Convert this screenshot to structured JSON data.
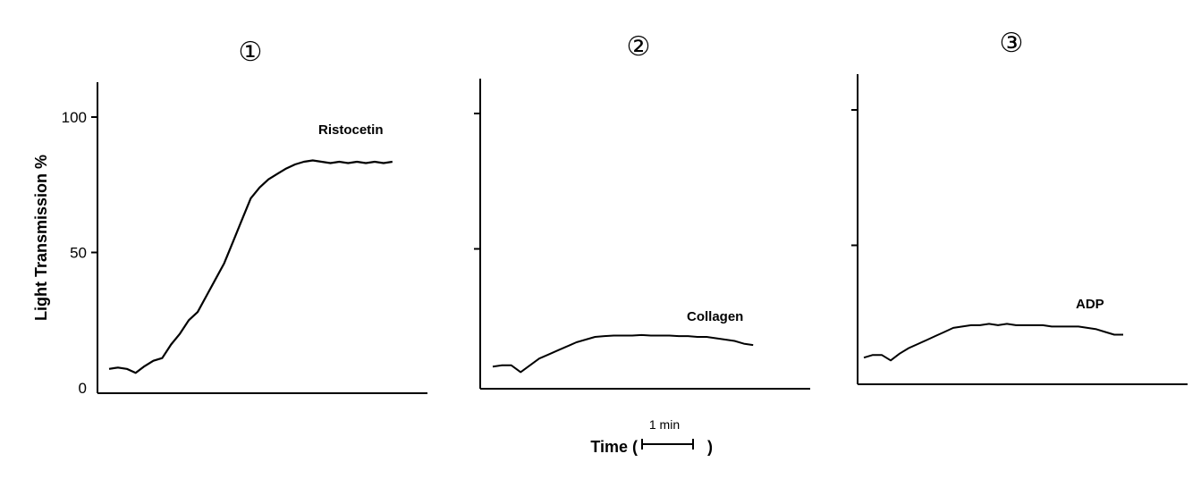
{
  "chart_data": [
    {
      "type": "line",
      "panel_label": "①",
      "annotation": "Ristocetin",
      "ylabel": "Light Transmission %",
      "yticks": [
        "0",
        "50",
        "100"
      ],
      "ylim": [
        0,
        100
      ],
      "x": [
        0,
        0.2,
        0.4,
        0.6,
        0.8,
        1.0,
        1.2,
        1.4,
        1.6,
        1.8,
        2.0,
        2.2,
        2.4,
        2.6,
        2.8,
        3.0,
        3.2,
        3.4,
        3.6,
        3.8,
        4.0,
        4.2,
        4.4,
        4.6,
        4.8,
        5.0,
        5.2,
        5.4,
        5.6,
        5.8,
        6.0,
        6.2,
        6.4
      ],
      "series": [
        {
          "values": [
            7,
            7.5,
            7,
            5.5,
            8,
            10,
            11,
            16,
            20,
            25,
            28,
            34,
            40,
            46,
            54,
            62,
            70,
            74,
            77,
            79,
            81,
            82.5,
            83.5,
            84,
            83.5,
            83,
            83.5,
            83,
            83.5,
            83,
            83.5,
            83,
            83.5
          ]
        }
      ]
    },
    {
      "type": "line",
      "panel_label": "②",
      "annotation": "Collagen",
      "yticks": [
        "",
        "",
        ""
      ],
      "ylim": [
        0,
        100
      ],
      "x": [
        0,
        0.2,
        0.4,
        0.6,
        0.8,
        1.0,
        1.2,
        1.4,
        1.6,
        1.8,
        2.0,
        2.2,
        2.4,
        2.6,
        2.8,
        3.0,
        3.2,
        3.4,
        3.6,
        3.8,
        4.0,
        4.2,
        4.4,
        4.6,
        4.8,
        5.0,
        5.2,
        5.4,
        5.6
      ],
      "series": [
        {
          "values": [
            6.5,
            7,
            7,
            4.5,
            7,
            9.5,
            11,
            12.5,
            14,
            15.5,
            16.5,
            17.5,
            17.8,
            18,
            18,
            18,
            18.2,
            18,
            18,
            18,
            17.8,
            17.8,
            17.5,
            17.5,
            17,
            16.5,
            16,
            15,
            14.5
          ]
        }
      ]
    },
    {
      "type": "line",
      "panel_label": "③",
      "annotation": "ADP",
      "yticks": [
        "",
        "",
        ""
      ],
      "ylim": [
        0,
        100
      ],
      "x": [
        0,
        0.2,
        0.4,
        0.6,
        0.8,
        1.0,
        1.2,
        1.4,
        1.6,
        1.8,
        2.0,
        2.2,
        2.4,
        2.6,
        2.8,
        3.0,
        3.2,
        3.4,
        3.6,
        3.8,
        4.0,
        4.2,
        4.4,
        4.6,
        4.8,
        5.0,
        5.2,
        5.4,
        5.6,
        5.8
      ],
      "series": [
        {
          "values": [
            8.5,
            9.5,
            9.5,
            7.5,
            10,
            12,
            13.5,
            15,
            16.5,
            18,
            19.5,
            20,
            20.5,
            20.5,
            21,
            20.5,
            21,
            20.5,
            20.5,
            20.5,
            20.5,
            20,
            20,
            20,
            20,
            19.5,
            19,
            18,
            17,
            17
          ]
        }
      ]
    }
  ],
  "time_label": "Time (",
  "time_label_close": ")",
  "scale_bar_label": "1 min"
}
